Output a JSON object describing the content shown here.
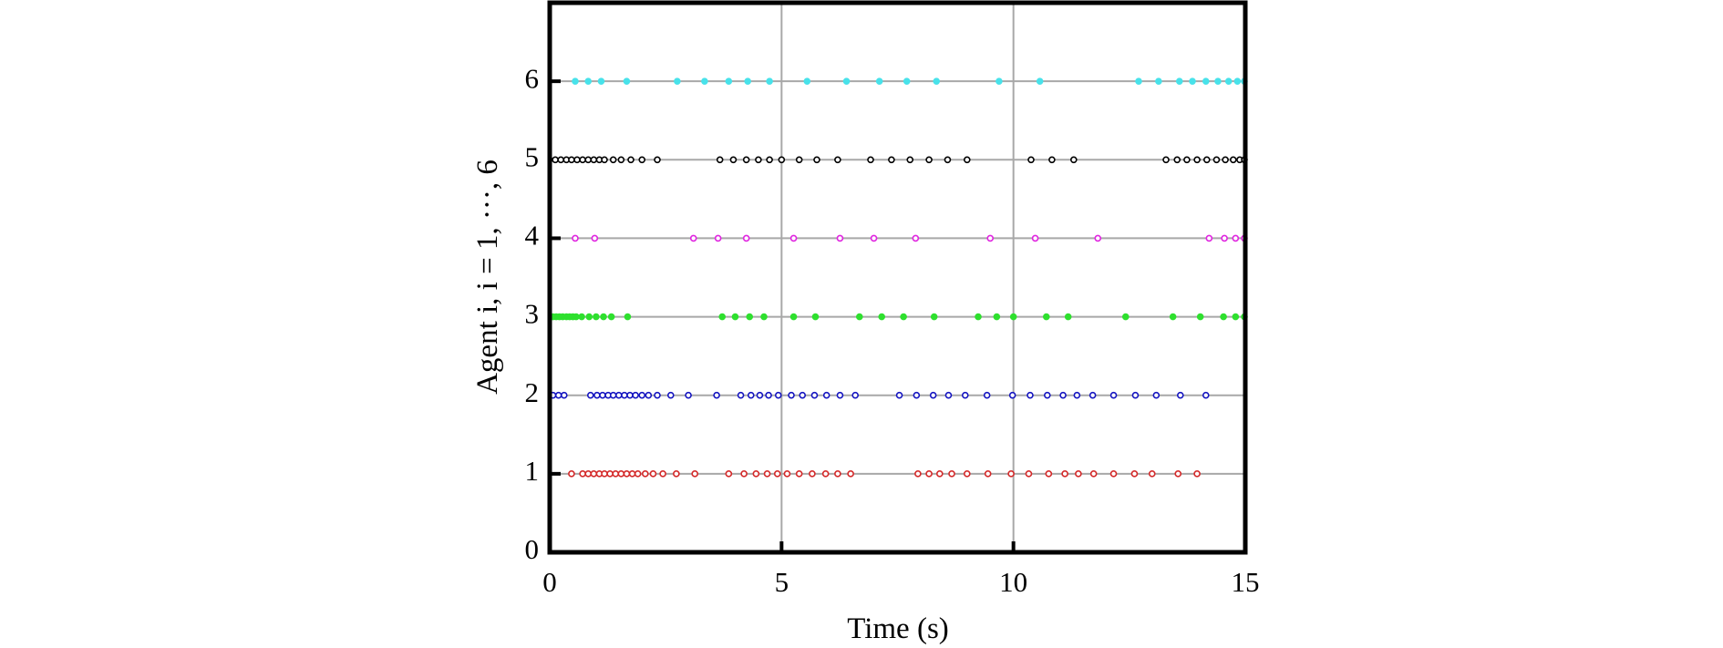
{
  "chart_data": {
    "type": "scatter",
    "x_label": "Time (s)",
    "y_label": "Agent i, i = 1, ···, 6",
    "xlim": [
      0,
      15
    ],
    "xticks": [
      0,
      5,
      10,
      15
    ],
    "ylim": [
      0,
      7
    ],
    "yticks": [
      0,
      1,
      2,
      3,
      4,
      5,
      6
    ],
    "grid": true,
    "series": [
      {
        "color": "#d42a2a",
        "filled": false,
        "x": [
          0.47,
          0.71,
          0.83,
          0.95,
          1.07,
          1.18,
          1.3,
          1.42,
          1.54,
          1.66,
          1.78,
          1.9,
          2.06,
          2.23,
          2.44,
          2.73,
          3.13,
          3.86,
          4.19,
          4.45,
          4.69,
          4.91,
          5.12,
          5.38,
          5.66,
          5.95,
          6.21,
          6.49,
          7.94,
          8.18,
          8.41,
          8.67,
          9.0,
          9.45,
          9.95,
          10.33,
          10.76,
          11.11,
          11.4,
          11.73,
          12.16,
          12.61,
          12.99,
          13.55,
          13.96
        ],
        "values": [
          1,
          1,
          1,
          1,
          1,
          1,
          1,
          1,
          1,
          1,
          1,
          1,
          1,
          1,
          1,
          1,
          1,
          1,
          1,
          1,
          1,
          1,
          1,
          1,
          1,
          1,
          1,
          1,
          1,
          1,
          1,
          1,
          1,
          1,
          1,
          1,
          1,
          1,
          1,
          1,
          1,
          1,
          1,
          1,
          1
        ]
      },
      {
        "color": "#1414c0",
        "filled": false,
        "x": [
          0.07,
          0.19,
          0.31,
          0.88,
          1.02,
          1.14,
          1.26,
          1.37,
          1.49,
          1.61,
          1.73,
          1.85,
          1.99,
          2.13,
          2.32,
          2.61,
          2.99,
          3.6,
          4.12,
          4.34,
          4.53,
          4.72,
          4.93,
          5.21,
          5.45,
          5.71,
          5.97,
          6.26,
          6.59,
          7.54,
          7.91,
          8.27,
          8.6,
          8.96,
          9.43,
          9.98,
          10.36,
          10.73,
          11.07,
          11.37,
          11.71,
          12.16,
          12.63,
          13.08,
          13.6,
          14.15
        ],
        "values": [
          2,
          2,
          2,
          2,
          2,
          2,
          2,
          2,
          2,
          2,
          2,
          2,
          2,
          2,
          2,
          2,
          2,
          2,
          2,
          2,
          2,
          2,
          2,
          2,
          2,
          2,
          2,
          2,
          2,
          2,
          2,
          2,
          2,
          2,
          2,
          2,
          2,
          2,
          2,
          2,
          2,
          2,
          2,
          2,
          2,
          2
        ]
      },
      {
        "color": "#2ee02e",
        "filled": true,
        "x": [
          0.07,
          0.14,
          0.21,
          0.28,
          0.36,
          0.43,
          0.5,
          0.57,
          0.69,
          0.85,
          1.0,
          1.16,
          1.33,
          1.68,
          3.72,
          4.0,
          4.31,
          4.62,
          5.26,
          5.73,
          6.68,
          7.16,
          7.63,
          8.29,
          9.24,
          9.64,
          10.0,
          10.71,
          11.18,
          12.42,
          13.44,
          14.03,
          14.53,
          14.79,
          14.98
        ],
        "values": [
          3,
          3,
          3,
          3,
          3,
          3,
          3,
          3,
          3,
          3,
          3,
          3,
          3,
          3,
          3,
          3,
          3,
          3,
          3,
          3,
          3,
          3,
          3,
          3,
          3,
          3,
          3,
          3,
          3,
          3,
          3,
          3,
          3,
          3,
          3
        ]
      },
      {
        "color": "#e024e0",
        "filled": false,
        "x": [
          0.55,
          0.97,
          3.1,
          3.63,
          4.24,
          5.26,
          6.26,
          6.99,
          7.89,
          9.5,
          10.47,
          11.82,
          14.22,
          14.55,
          14.79,
          14.98
        ],
        "values": [
          4,
          4,
          4,
          4,
          4,
          4,
          4,
          4,
          4,
          4,
          4,
          4,
          4,
          4,
          4,
          4
        ]
      },
      {
        "color": "#000000",
        "filled": false,
        "x": [
          0.12,
          0.24,
          0.36,
          0.47,
          0.59,
          0.71,
          0.83,
          0.95,
          1.07,
          1.18,
          1.37,
          1.54,
          1.75,
          1.99,
          2.32,
          3.67,
          3.96,
          4.24,
          4.5,
          4.74,
          5.0,
          5.38,
          5.76,
          6.21,
          6.92,
          7.37,
          7.77,
          8.18,
          8.58,
          9.0,
          10.38,
          10.83,
          11.3,
          13.29,
          13.53,
          13.74,
          13.96,
          14.17,
          14.38,
          14.57,
          14.74,
          14.88,
          14.98
        ],
        "values": [
          5,
          5,
          5,
          5,
          5,
          5,
          5,
          5,
          5,
          5,
          5,
          5,
          5,
          5,
          5,
          5,
          5,
          5,
          5,
          5,
          5,
          5,
          5,
          5,
          5,
          5,
          5,
          5,
          5,
          5,
          5,
          5,
          5,
          5,
          5,
          5,
          5,
          5,
          5,
          5,
          5,
          5,
          5
        ]
      },
      {
        "color": "#48e2ea",
        "filled": true,
        "x": [
          0.55,
          0.83,
          1.11,
          1.66,
          2.75,
          3.34,
          3.86,
          4.27,
          4.74,
          5.55,
          6.4,
          7.11,
          7.7,
          8.34,
          9.69,
          10.57,
          12.7,
          13.13,
          13.58,
          13.86,
          14.15,
          14.41,
          14.64,
          14.83,
          14.98
        ],
        "values": [
          6,
          6,
          6,
          6,
          6,
          6,
          6,
          6,
          6,
          6,
          6,
          6,
          6,
          6,
          6,
          6,
          6,
          6,
          6,
          6,
          6,
          6,
          6,
          6,
          6
        ]
      }
    ]
  }
}
